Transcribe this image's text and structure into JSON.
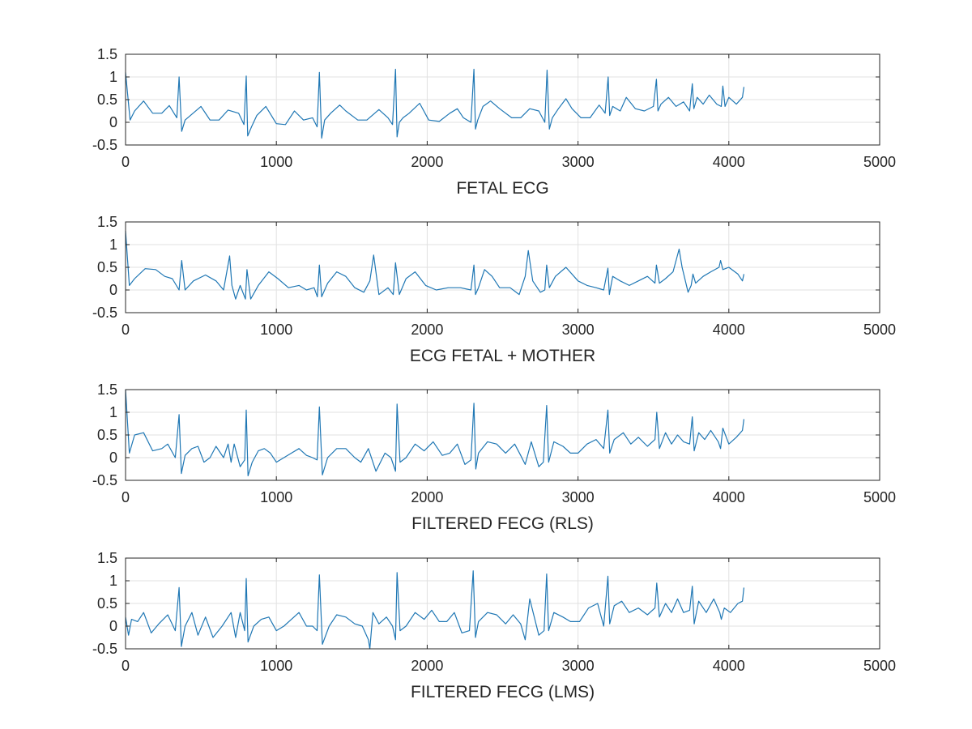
{
  "chart_data": [
    {
      "type": "line",
      "xlabel": "FETAL ECG",
      "xlim": [
        0,
        5000
      ],
      "ylim": [
        -0.5,
        1.5
      ],
      "xticks": [
        0,
        1000,
        2000,
        3000,
        4000,
        5000
      ],
      "yticks": [
        -0.5,
        0,
        0.5,
        1,
        1.5
      ],
      "grid": true,
      "line_color": "#1f77b4",
      "series": [
        {
          "x": [
            0,
            30,
            60,
            120,
            180,
            240,
            290,
            340,
            355,
            372,
            395,
            430,
            500,
            560,
            620,
            680,
            750,
            785,
            800,
            810,
            835,
            870,
            930,
            1000,
            1060,
            1120,
            1180,
            1240,
            1270,
            1285,
            1300,
            1320,
            1360,
            1420,
            1460,
            1540,
            1600,
            1680,
            1740,
            1770,
            1790,
            1800,
            1815,
            1840,
            1880,
            1950,
            2010,
            2080,
            2150,
            2200,
            2240,
            2290,
            2310,
            2320,
            2335,
            2370,
            2420,
            2480,
            2560,
            2620,
            2680,
            2740,
            2780,
            2795,
            2810,
            2830,
            2870,
            2920,
            2960,
            3020,
            3080,
            3140,
            3180,
            3200,
            3210,
            3230,
            3280,
            3320,
            3380,
            3440,
            3500,
            3520,
            3530,
            3550,
            3600,
            3650,
            3700,
            3740,
            3758,
            3768,
            3790,
            3830,
            3870,
            3920,
            3950,
            3960,
            3975,
            4000,
            4050,
            4090,
            4100
          ],
          "y": [
            1.1,
            0.05,
            0.25,
            0.47,
            0.2,
            0.2,
            0.37,
            0.1,
            1.0,
            -0.2,
            0.05,
            0.15,
            0.35,
            0.05,
            0.05,
            0.27,
            0.2,
            -0.05,
            1.02,
            -0.3,
            -0.1,
            0.15,
            0.35,
            -0.03,
            -0.05,
            0.25,
            0.05,
            0.1,
            -0.1,
            1.1,
            -0.35,
            0.05,
            0.2,
            0.38,
            0.25,
            0.05,
            0.05,
            0.28,
            0.1,
            -0.05,
            1.17,
            -0.32,
            0.0,
            0.1,
            0.2,
            0.42,
            0.05,
            0.02,
            0.2,
            0.3,
            0.1,
            0.0,
            1.17,
            -0.15,
            0.05,
            0.35,
            0.47,
            0.3,
            0.1,
            0.1,
            0.3,
            0.25,
            0.0,
            1.15,
            -0.15,
            0.1,
            0.3,
            0.52,
            0.3,
            0.1,
            0.1,
            0.38,
            0.2,
            1.0,
            0.15,
            0.35,
            0.25,
            0.55,
            0.3,
            0.25,
            0.35,
            0.95,
            0.25,
            0.4,
            0.55,
            0.35,
            0.45,
            0.25,
            0.85,
            0.3,
            0.55,
            0.4,
            0.6,
            0.4,
            0.35,
            0.8,
            0.35,
            0.55,
            0.4,
            0.55,
            0.78
          ]
        }
      ]
    },
    {
      "type": "line",
      "xlabel": "ECG FETAL + MOTHER",
      "xlim": [
        0,
        5000
      ],
      "ylim": [
        -0.5,
        1.5
      ],
      "xticks": [
        0,
        1000,
        2000,
        3000,
        4000,
        5000
      ],
      "yticks": [
        -0.5,
        0,
        0.5,
        1,
        1.5
      ],
      "grid": true,
      "line_color": "#1f77b4",
      "series": [
        {
          "x": [
            0,
            25,
            60,
            130,
            200,
            260,
            310,
            355,
            372,
            395,
            450,
            530,
            600,
            650,
            690,
            705,
            730,
            760,
            795,
            805,
            830,
            880,
            950,
            1010,
            1080,
            1150,
            1200,
            1250,
            1272,
            1285,
            1300,
            1340,
            1400,
            1460,
            1520,
            1580,
            1620,
            1645,
            1680,
            1740,
            1775,
            1790,
            1815,
            1860,
            1920,
            1990,
            2060,
            2140,
            2220,
            2290,
            2310,
            2320,
            2340,
            2380,
            2430,
            2480,
            2550,
            2610,
            2650,
            2670,
            2700,
            2750,
            2780,
            2792,
            2810,
            2850,
            2920,
            3000,
            3060,
            3120,
            3170,
            3198,
            3208,
            3230,
            3280,
            3340,
            3400,
            3460,
            3510,
            3520,
            3540,
            3580,
            3630,
            3670,
            3690,
            3730,
            3750,
            3762,
            3780,
            3830,
            3880,
            3935,
            3945,
            3960,
            4000,
            4060,
            4090,
            4100
          ],
          "y": [
            1.3,
            0.1,
            0.25,
            0.47,
            0.45,
            0.3,
            0.25,
            0.0,
            0.65,
            0.0,
            0.2,
            0.33,
            0.2,
            0.0,
            0.75,
            0.1,
            -0.2,
            0.1,
            -0.2,
            0.45,
            -0.2,
            0.1,
            0.4,
            0.25,
            0.05,
            0.1,
            0.0,
            0.05,
            -0.15,
            0.55,
            -0.15,
            0.15,
            0.4,
            0.3,
            0.05,
            -0.05,
            0.2,
            0.77,
            -0.1,
            0.05,
            -0.1,
            0.6,
            -0.1,
            0.25,
            0.4,
            0.1,
            0.0,
            0.05,
            0.05,
            0.0,
            0.55,
            -0.1,
            0.05,
            0.45,
            0.3,
            0.05,
            0.05,
            -0.1,
            0.3,
            0.87,
            0.2,
            -0.05,
            0.0,
            0.55,
            0.05,
            0.3,
            0.5,
            0.2,
            0.1,
            0.05,
            0.0,
            0.48,
            -0.1,
            0.3,
            0.2,
            0.1,
            0.2,
            0.3,
            0.15,
            0.55,
            0.15,
            0.25,
            0.4,
            0.9,
            0.5,
            -0.05,
            0.1,
            0.35,
            0.15,
            0.3,
            0.4,
            0.5,
            0.65,
            0.45,
            0.5,
            0.35,
            0.2,
            0.35
          ]
        }
      ]
    },
    {
      "type": "line",
      "xlabel": "FILTERED FECG (RLS)",
      "xlim": [
        0,
        5000
      ],
      "ylim": [
        -0.5,
        1.5
      ],
      "xticks": [
        0,
        1000,
        2000,
        3000,
        4000,
        5000
      ],
      "yticks": [
        -0.5,
        0,
        0.5,
        1,
        1.5
      ],
      "grid": true,
      "line_color": "#1f77b4",
      "series": [
        {
          "x": [
            0,
            25,
            60,
            120,
            180,
            240,
            280,
            330,
            355,
            370,
            395,
            440,
            480,
            520,
            560,
            600,
            650,
            680,
            700,
            720,
            760,
            790,
            800,
            812,
            840,
            880,
            920,
            960,
            1000,
            1050,
            1100,
            1150,
            1200,
            1240,
            1270,
            1285,
            1305,
            1340,
            1400,
            1460,
            1520,
            1560,
            1610,
            1660,
            1720,
            1760,
            1790,
            1800,
            1820,
            1860,
            1920,
            1980,
            2040,
            2100,
            2150,
            2200,
            2250,
            2290,
            2310,
            2322,
            2340,
            2400,
            2460,
            2520,
            2580,
            2620,
            2650,
            2690,
            2740,
            2770,
            2792,
            2805,
            2840,
            2900,
            2950,
            3000,
            3060,
            3120,
            3170,
            3198,
            3210,
            3240,
            3300,
            3350,
            3400,
            3460,
            3510,
            3522,
            3540,
            3580,
            3620,
            3660,
            3700,
            3740,
            3758,
            3770,
            3800,
            3840,
            3880,
            3930,
            3945,
            3960,
            4000,
            4050,
            4090,
            4100
          ],
          "y": [
            1.5,
            0.1,
            0.5,
            0.55,
            0.15,
            0.2,
            0.3,
            0.0,
            0.95,
            -0.35,
            0.05,
            0.2,
            0.25,
            -0.1,
            0.0,
            0.25,
            0.0,
            0.3,
            -0.1,
            0.3,
            -0.2,
            -0.05,
            1.05,
            -0.4,
            -0.1,
            0.15,
            0.2,
            0.1,
            -0.1,
            0.0,
            0.1,
            0.2,
            0.05,
            0.0,
            -0.05,
            1.12,
            -0.38,
            0.0,
            0.2,
            0.2,
            0.0,
            -0.1,
            0.2,
            -0.3,
            0.1,
            0.0,
            -0.3,
            1.18,
            -0.1,
            0.0,
            0.3,
            0.15,
            0.35,
            0.05,
            0.1,
            0.3,
            -0.15,
            -0.05,
            1.2,
            -0.25,
            0.1,
            0.35,
            0.3,
            0.1,
            0.3,
            0.05,
            -0.15,
            0.35,
            -0.2,
            -0.1,
            1.15,
            -0.1,
            0.35,
            0.25,
            0.1,
            0.1,
            0.3,
            0.4,
            0.2,
            1.05,
            0.1,
            0.4,
            0.55,
            0.3,
            0.45,
            0.25,
            0.4,
            1.0,
            0.2,
            0.55,
            0.3,
            0.5,
            0.35,
            0.3,
            0.9,
            0.15,
            0.55,
            0.4,
            0.6,
            0.35,
            0.2,
            0.65,
            0.3,
            0.45,
            0.6,
            0.85
          ]
        }
      ]
    },
    {
      "type": "line",
      "xlabel": "FILTERED FECG (LMS)",
      "xlim": [
        0,
        5000
      ],
      "ylim": [
        -0.5,
        1.5
      ],
      "xticks": [
        0,
        1000,
        2000,
        3000,
        4000,
        5000
      ],
      "yticks": [
        -0.5,
        0,
        0.5,
        1,
        1.5
      ],
      "grid": true,
      "line_color": "#1f77b4",
      "series": [
        {
          "x": [
            0,
            20,
            40,
            80,
            120,
            170,
            220,
            280,
            330,
            355,
            370,
            395,
            440,
            480,
            530,
            580,
            640,
            700,
            730,
            760,
            790,
            800,
            812,
            850,
            900,
            950,
            1000,
            1050,
            1100,
            1150,
            1200,
            1240,
            1270,
            1285,
            1305,
            1350,
            1400,
            1460,
            1520,
            1570,
            1610,
            1620,
            1640,
            1680,
            1730,
            1770,
            1790,
            1800,
            1820,
            1860,
            1920,
            1980,
            2030,
            2080,
            2130,
            2180,
            2230,
            2280,
            2305,
            2320,
            2340,
            2400,
            2460,
            2520,
            2570,
            2620,
            2650,
            2680,
            2740,
            2775,
            2792,
            2805,
            2840,
            2900,
            2950,
            3010,
            3070,
            3130,
            3170,
            3198,
            3210,
            3240,
            3290,
            3340,
            3400,
            3460,
            3510,
            3522,
            3540,
            3580,
            3620,
            3660,
            3700,
            3740,
            3758,
            3770,
            3800,
            3850,
            3900,
            3940,
            3950,
            3970,
            4010,
            4060,
            4090,
            4100
          ],
          "y": [
            0.2,
            -0.2,
            0.15,
            0.1,
            0.3,
            -0.15,
            0.05,
            0.25,
            -0.1,
            0.85,
            -0.45,
            0.0,
            0.3,
            -0.2,
            0.2,
            -0.25,
            0.0,
            0.3,
            -0.25,
            0.3,
            -0.1,
            1.05,
            -0.35,
            0.0,
            0.15,
            0.2,
            -0.1,
            0.0,
            0.15,
            0.3,
            0.0,
            0.0,
            -0.1,
            1.13,
            -0.4,
            0.0,
            0.25,
            0.2,
            0.05,
            0.0,
            -0.3,
            -0.5,
            0.3,
            0.05,
            0.2,
            0.0,
            -0.3,
            1.18,
            -0.1,
            0.0,
            0.3,
            0.15,
            0.35,
            0.1,
            0.1,
            0.3,
            -0.15,
            -0.1,
            1.22,
            -0.25,
            0.1,
            0.3,
            0.25,
            0.05,
            0.25,
            0.05,
            -0.3,
            0.6,
            -0.2,
            -0.1,
            1.15,
            -0.1,
            0.3,
            0.2,
            0.1,
            0.1,
            0.4,
            0.5,
            0.0,
            1.1,
            0.05,
            0.45,
            0.55,
            0.3,
            0.4,
            0.25,
            0.4,
            0.95,
            0.2,
            0.5,
            0.3,
            0.6,
            0.3,
            0.35,
            0.88,
            0.05,
            0.55,
            0.3,
            0.6,
            0.3,
            0.15,
            0.4,
            0.3,
            0.5,
            0.55,
            0.85
          ]
        }
      ]
    }
  ]
}
